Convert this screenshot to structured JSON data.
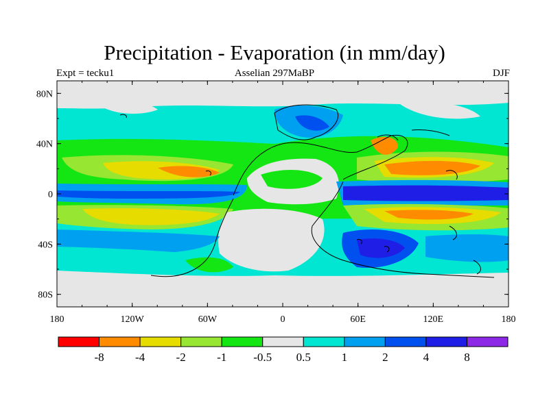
{
  "header": {
    "title": "Precipitation - Evaporation (in mm/day)",
    "left_label": "Expt = tecku1",
    "center_label": "Asselian 297MaBP",
    "right_label": "DJF"
  },
  "map": {
    "y_ticks": [
      {
        "lat": 80,
        "label": "80N"
      },
      {
        "lat": 40,
        "label": "40N"
      },
      {
        "lat": 0,
        "label": "0"
      },
      {
        "lat": -40,
        "label": "40S"
      },
      {
        "lat": -80,
        "label": "80S"
      }
    ],
    "x_ticks": [
      {
        "lon": -180,
        "label": "180"
      },
      {
        "lon": -120,
        "label": "120W"
      },
      {
        "lon": -60,
        "label": "60W"
      },
      {
        "lon": 0,
        "label": "0"
      },
      {
        "lon": 60,
        "label": "60E"
      },
      {
        "lon": 120,
        "label": "120E"
      },
      {
        "lon": 180,
        "label": "180"
      }
    ],
    "lat_range": [
      -90,
      90
    ],
    "lon_range": [
      -180,
      180
    ]
  },
  "colorbar": {
    "colors": [
      "#ff0000",
      "#ff8c00",
      "#e6dc00",
      "#96e632",
      "#14e614",
      "#e6e6e6",
      "#00e6d2",
      "#00a0f0",
      "#0050f0",
      "#1e1ee6",
      "#8c28e6"
    ],
    "labels": [
      "-8",
      "-4",
      "-2",
      "-1",
      "-0.5",
      "0.5",
      "1",
      "2",
      "4",
      "8"
    ]
  }
}
